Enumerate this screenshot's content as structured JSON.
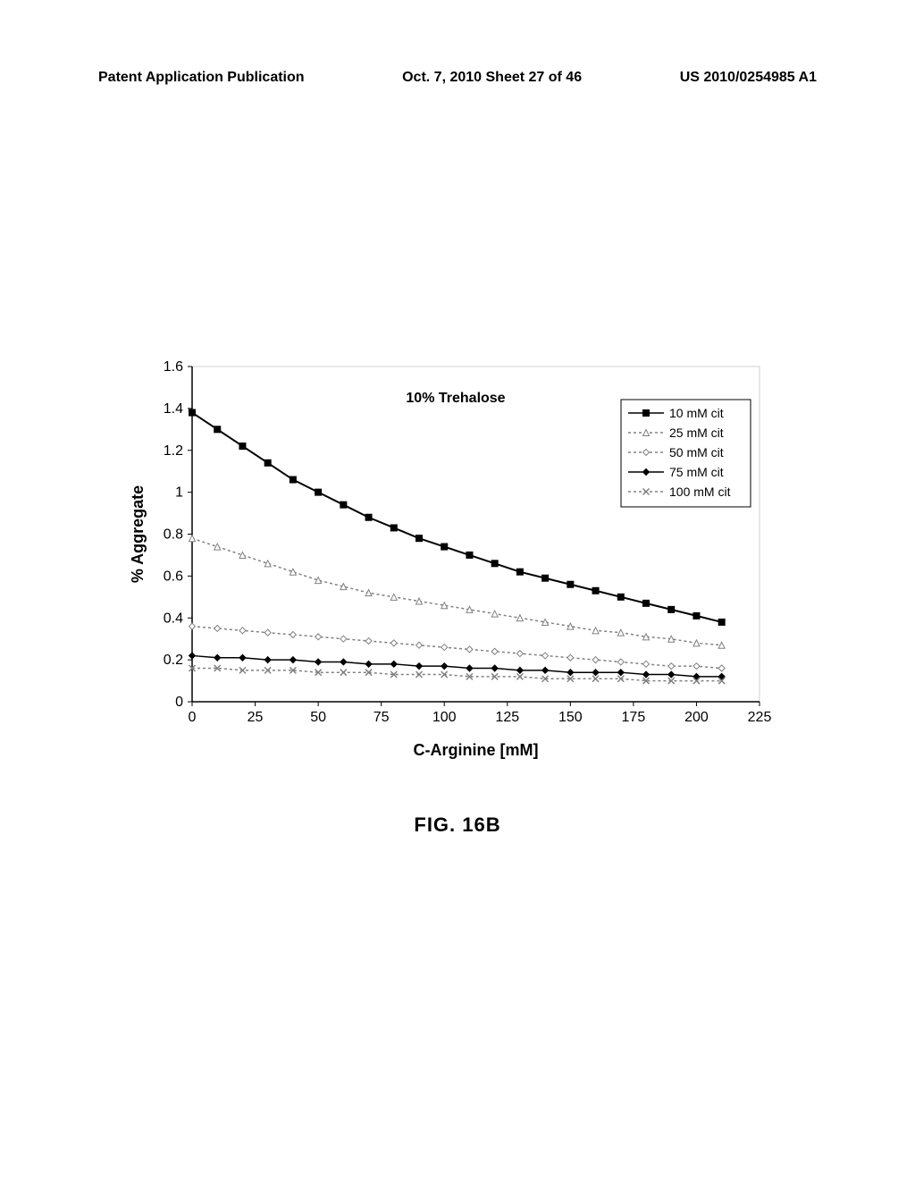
{
  "header": {
    "left": "Patent Application Publication",
    "center": "Oct. 7, 2010  Sheet 27 of 46",
    "right": "US 2010/0254985 A1"
  },
  "figure_label": "FIG. 16B",
  "chart": {
    "type": "line",
    "title": "10% Trehalose",
    "title_fontsize": 16,
    "xlabel": "C-Arginine [mM]",
    "ylabel": "% Aggregate",
    "label_fontsize": 18,
    "xlim": [
      0,
      225
    ],
    "ylim": [
      0,
      1.6
    ],
    "xtick_step": 25,
    "ytick_step": 0.2,
    "background_color": "#ffffff",
    "axis_color": "#000000",
    "grid_color": "#d0d0d0",
    "xticks": [
      0,
      25,
      50,
      75,
      100,
      125,
      150,
      175,
      200,
      225
    ],
    "yticks": [
      0,
      0.2,
      0.4,
      0.6,
      0.8,
      1,
      1.2,
      1.4,
      1.6
    ],
    "legend": {
      "position": "upper-right",
      "border_color": "#000000",
      "background_color": "#ffffff",
      "items": [
        {
          "label": "10 mM cit",
          "marker": "square-filled",
          "color": "#000000",
          "line_style": "solid"
        },
        {
          "label": "25 mM cit",
          "marker": "triangle-open",
          "color": "#808080",
          "line_style": "dashed"
        },
        {
          "label": "50 mM cit",
          "marker": "diamond-open",
          "color": "#808080",
          "line_style": "dashed"
        },
        {
          "label": "75 mM cit",
          "marker": "diamond-filled",
          "color": "#000000",
          "line_style": "solid"
        },
        {
          "label": "100 mM cit",
          "marker": "x",
          "color": "#808080",
          "line_style": "dashed"
        }
      ]
    },
    "series": [
      {
        "name": "10 mM cit",
        "color": "#000000",
        "line_width": 2,
        "line_style": "solid",
        "marker": "square-filled",
        "marker_size": 7,
        "x": [
          0,
          10,
          20,
          30,
          40,
          50,
          60,
          70,
          80,
          90,
          100,
          110,
          120,
          130,
          140,
          150,
          160,
          170,
          180,
          190,
          200,
          210
        ],
        "y": [
          1.38,
          1.3,
          1.22,
          1.14,
          1.06,
          1.0,
          0.94,
          0.88,
          0.83,
          0.78,
          0.74,
          0.7,
          0.66,
          0.62,
          0.59,
          0.56,
          0.53,
          0.5,
          0.47,
          0.44,
          0.41,
          0.38
        ]
      },
      {
        "name": "25 mM cit",
        "color": "#808080",
        "line_width": 1.5,
        "line_style": "dashed",
        "marker": "triangle-open",
        "marker_size": 7,
        "x": [
          0,
          10,
          20,
          30,
          40,
          50,
          60,
          70,
          80,
          90,
          100,
          110,
          120,
          130,
          140,
          150,
          160,
          170,
          180,
          190,
          200,
          210
        ],
        "y": [
          0.78,
          0.74,
          0.7,
          0.66,
          0.62,
          0.58,
          0.55,
          0.52,
          0.5,
          0.48,
          0.46,
          0.44,
          0.42,
          0.4,
          0.38,
          0.36,
          0.34,
          0.33,
          0.31,
          0.3,
          0.28,
          0.27
        ]
      },
      {
        "name": "50 mM cit",
        "color": "#808080",
        "line_width": 1.5,
        "line_style": "dashed",
        "marker": "diamond-open",
        "marker_size": 7,
        "x": [
          0,
          10,
          20,
          30,
          40,
          50,
          60,
          70,
          80,
          90,
          100,
          110,
          120,
          130,
          140,
          150,
          160,
          170,
          180,
          190,
          200,
          210
        ],
        "y": [
          0.36,
          0.35,
          0.34,
          0.33,
          0.32,
          0.31,
          0.3,
          0.29,
          0.28,
          0.27,
          0.26,
          0.25,
          0.24,
          0.23,
          0.22,
          0.21,
          0.2,
          0.19,
          0.18,
          0.17,
          0.17,
          0.16
        ]
      },
      {
        "name": "75 mM cit",
        "color": "#000000",
        "line_width": 1.5,
        "line_style": "solid",
        "marker": "diamond-filled",
        "marker_size": 7,
        "x": [
          0,
          10,
          20,
          30,
          40,
          50,
          60,
          70,
          80,
          90,
          100,
          110,
          120,
          130,
          140,
          150,
          160,
          170,
          180,
          190,
          200,
          210
        ],
        "y": [
          0.22,
          0.21,
          0.21,
          0.2,
          0.2,
          0.19,
          0.19,
          0.18,
          0.18,
          0.17,
          0.17,
          0.16,
          0.16,
          0.15,
          0.15,
          0.14,
          0.14,
          0.14,
          0.13,
          0.13,
          0.12,
          0.12
        ]
      },
      {
        "name": "100 mM cit",
        "color": "#808080",
        "line_width": 1.5,
        "line_style": "dashed",
        "marker": "x",
        "marker_size": 7,
        "x": [
          0,
          10,
          20,
          30,
          40,
          50,
          60,
          70,
          80,
          90,
          100,
          110,
          120,
          130,
          140,
          150,
          160,
          170,
          180,
          190,
          200,
          210
        ],
        "y": [
          0.16,
          0.16,
          0.15,
          0.15,
          0.15,
          0.14,
          0.14,
          0.14,
          0.13,
          0.13,
          0.13,
          0.12,
          0.12,
          0.12,
          0.11,
          0.11,
          0.11,
          0.11,
          0.1,
          0.1,
          0.1,
          0.1
        ]
      }
    ]
  }
}
